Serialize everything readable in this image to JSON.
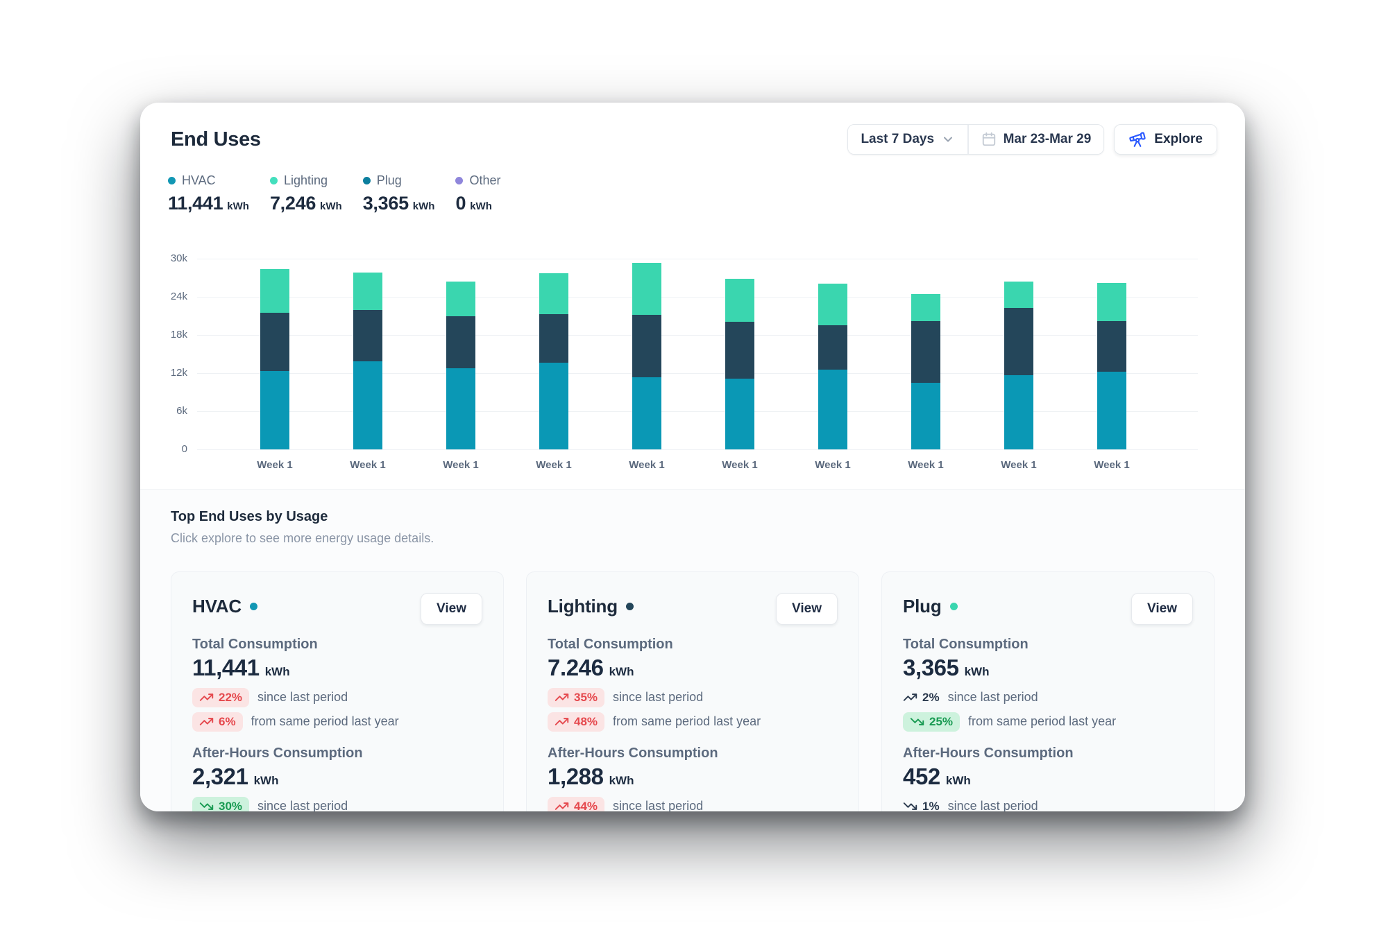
{
  "page": {
    "title": "End Uses"
  },
  "controls": {
    "range_label": "Last 7 Days",
    "date_range": "Mar 23-Mar 29",
    "explore_label": "Explore",
    "explore_accent": "#2D5BFF"
  },
  "legend": {
    "items": [
      {
        "label": "HVAC",
        "value": "11,441",
        "unit": "kWh",
        "color": "#1297B4"
      },
      {
        "label": "Lighting",
        "value": "7,246",
        "unit": "kWh",
        "color": "#43DFBD"
      },
      {
        "label": "Plug",
        "value": "3,365",
        "unit": "kWh",
        "color": "#0C7F9E"
      },
      {
        "label": "Other",
        "value": "0",
        "unit": "kWh",
        "color": "#8F86DB"
      }
    ]
  },
  "chart_data": {
    "type": "bar",
    "stacked": true,
    "title": "",
    "xlabel": "",
    "ylabel": "",
    "ylim": [
      0,
      30000
    ],
    "grid": true,
    "legend_position": "top",
    "categories": [
      "Week 1",
      "Week 1",
      "Week 1",
      "Week 1",
      "Week 1",
      "Week 1",
      "Week 1",
      "Week 1",
      "Week 1",
      "Week 1"
    ],
    "yticks": [
      {
        "value": 0,
        "label": "0"
      },
      {
        "value": 6000,
        "label": "6k"
      },
      {
        "value": 12000,
        "label": "12k"
      },
      {
        "value": 18000,
        "label": "18k"
      },
      {
        "value": 24000,
        "label": "24k"
      },
      {
        "value": 30000,
        "label": "30k"
      }
    ],
    "series": [
      {
        "name": "HVAC",
        "color": "#0A98B5",
        "values": [
          12300,
          13900,
          12800,
          13600,
          11400,
          11100,
          12500,
          10500,
          11700,
          12200
        ]
      },
      {
        "name": "Lighting",
        "color": "#24465A",
        "values": [
          9200,
          8000,
          8100,
          7700,
          9800,
          9000,
          7000,
          9700,
          10600,
          8000
        ]
      },
      {
        "name": "Plug",
        "color": "#3AD6AF",
        "values": [
          6900,
          5900,
          5500,
          6400,
          8100,
          6700,
          6600,
          4200,
          4100,
          6000
        ]
      }
    ]
  },
  "section": {
    "title": "Top End Uses by Usage",
    "subtitle": "Click explore to see more energy usage details."
  },
  "cards": [
    {
      "title": "HVAC",
      "dot_color": "#1297B4",
      "view_label": "View",
      "total": {
        "label": "Total Consumption",
        "value": "11,441",
        "unit": "kWh",
        "trends": [
          {
            "value": "22%",
            "direction": "up",
            "style": "bad",
            "text": "since last period"
          },
          {
            "value": "6%",
            "direction": "up",
            "style": "bad",
            "text": "from same period last year"
          }
        ]
      },
      "after": {
        "label": "After-Hours Consumption",
        "value": "2,321",
        "unit": "kWh",
        "trends": [
          {
            "value": "30%",
            "direction": "down",
            "style": "good",
            "text": "since last period"
          }
        ]
      }
    },
    {
      "title": "Lighting",
      "dot_color": "#24465A",
      "view_label": "View",
      "total": {
        "label": "Total Consumption",
        "value": "7.246",
        "unit": "kWh",
        "trends": [
          {
            "value": "35%",
            "direction": "up",
            "style": "bad",
            "text": "since last period"
          },
          {
            "value": "48%",
            "direction": "up",
            "style": "bad",
            "text": "from same period last year"
          }
        ]
      },
      "after": {
        "label": "After-Hours Consumption",
        "value": "1,288",
        "unit": "kWh",
        "trends": [
          {
            "value": "44%",
            "direction": "up",
            "style": "bad",
            "text": "since last period"
          }
        ]
      }
    },
    {
      "title": "Plug",
      "dot_color": "#3AD6AF",
      "view_label": "View",
      "total": {
        "label": "Total Consumption",
        "value": "3,365",
        "unit": "kWh",
        "trends": [
          {
            "value": "2%",
            "direction": "up",
            "style": "plain",
            "text": "since last period"
          },
          {
            "value": "25%",
            "direction": "down",
            "style": "good",
            "text": "from same period last year"
          }
        ]
      },
      "after": {
        "label": "After-Hours Consumption",
        "value": "452",
        "unit": "kWh",
        "trends": [
          {
            "value": "1%",
            "direction": "down",
            "style": "plain",
            "text": "since last period"
          }
        ]
      }
    }
  ]
}
